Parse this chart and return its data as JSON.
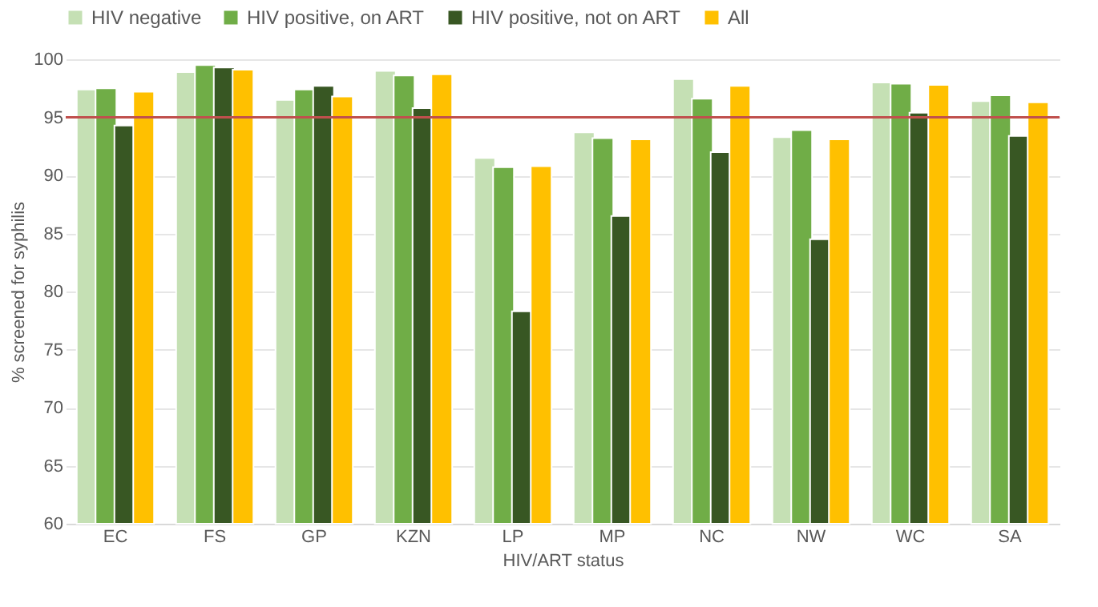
{
  "chart_data": {
    "type": "bar",
    "xlabel": "HIV/ART status",
    "ylabel": "% screened for syphilis",
    "categories": [
      "EC",
      "FS",
      "GP",
      "KZN",
      "LP",
      "MP",
      "NC",
      "NW",
      "WC",
      "SA"
    ],
    "series": [
      {
        "name": "HIV negative",
        "color": "#c5e0b4",
        "values": [
          97.4,
          98.9,
          96.5,
          99.0,
          91.5,
          93.7,
          98.3,
          93.3,
          98.0,
          96.4
        ]
      },
      {
        "name": "HIV positive, on ART",
        "color": "#70ad47",
        "values": [
          97.5,
          99.5,
          97.4,
          98.6,
          90.7,
          93.2,
          96.6,
          93.9,
          97.9,
          96.9
        ]
      },
      {
        "name": "HIV positive, not on ART",
        "color": "#385723",
        "values": [
          94.3,
          99.3,
          97.7,
          95.8,
          78.3,
          86.5,
          92.0,
          84.5,
          95.4,
          93.4
        ]
      },
      {
        "name": "All",
        "color": "#ffc000",
        "values": [
          97.2,
          99.1,
          96.8,
          98.7,
          90.8,
          93.1,
          97.7,
          93.1,
          97.8,
          96.3
        ]
      }
    ],
    "ylim": [
      60,
      100
    ],
    "yticks": [
      60,
      65,
      70,
      75,
      80,
      85,
      90,
      95,
      100
    ],
    "grid": "y",
    "legend": "top",
    "ref_lines": [
      {
        "axis": "y",
        "value": 95,
        "color": "#c0504d"
      }
    ]
  }
}
